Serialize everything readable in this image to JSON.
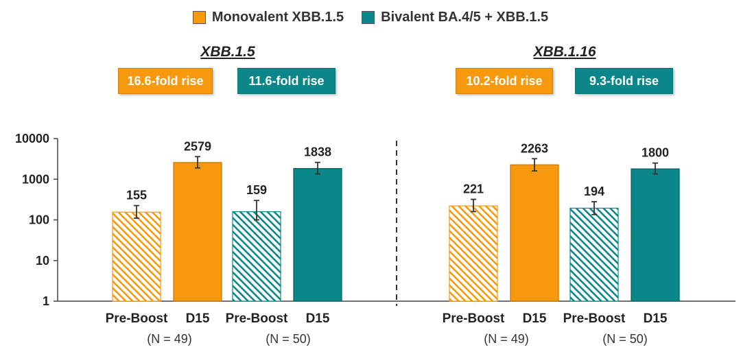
{
  "legend": {
    "items": [
      {
        "label": "Monovalent XBB.1.5",
        "color": "#f7990f"
      },
      {
        "label": "Bivalent BA.4/5 + XBB.1.5",
        "color": "#0b8789"
      }
    ]
  },
  "fold_boxes": {
    "left": [
      {
        "label": "16.6-fold rise",
        "color": "#f7990f"
      },
      {
        "label": "11.6-fold rise",
        "color": "#0b8789"
      }
    ],
    "right": [
      {
        "label": "10.2-fold rise",
        "color": "#f7990f"
      },
      {
        "label": "9.3-fold rise",
        "color": "#0b8789"
      }
    ]
  },
  "group_labels": {
    "left": [
      "(N = 49)",
      "(N = 50)"
    ],
    "right": [
      "(N = 49)",
      "(N = 50)"
    ]
  },
  "chart_data": {
    "type": "bar",
    "yscale": "log",
    "ylim": [
      1,
      10000
    ],
    "yticks": [
      1,
      10,
      100,
      1000,
      10000
    ],
    "grid": false,
    "legend_position": "top",
    "panels": [
      {
        "title": "XBB.1.5",
        "categories": [
          "Pre-Boost",
          "D15",
          "Pre-Boost",
          "D15"
        ],
        "values": [
          155,
          2579,
          159,
          1838
        ],
        "error_low": [
          110,
          1900,
          100,
          1350
        ],
        "error_high": [
          225,
          3600,
          300,
          2600
        ],
        "series_index": [
          0,
          0,
          1,
          1
        ],
        "hatched": [
          true,
          false,
          true,
          false
        ],
        "data_labels": [
          "155",
          "2579",
          "159",
          "1838"
        ]
      },
      {
        "title": "XBB.1.16",
        "categories": [
          "Pre-Boost",
          "D15",
          "Pre-Boost",
          "D15"
        ],
        "values": [
          221,
          2263,
          194,
          1800
        ],
        "error_low": [
          160,
          1600,
          135,
          1350
        ],
        "error_high": [
          320,
          3200,
          280,
          2500
        ],
        "series_index": [
          0,
          0,
          1,
          1
        ],
        "hatched": [
          true,
          false,
          true,
          false
        ],
        "data_labels": [
          "221",
          "2263",
          "194",
          "1800"
        ]
      }
    ]
  }
}
